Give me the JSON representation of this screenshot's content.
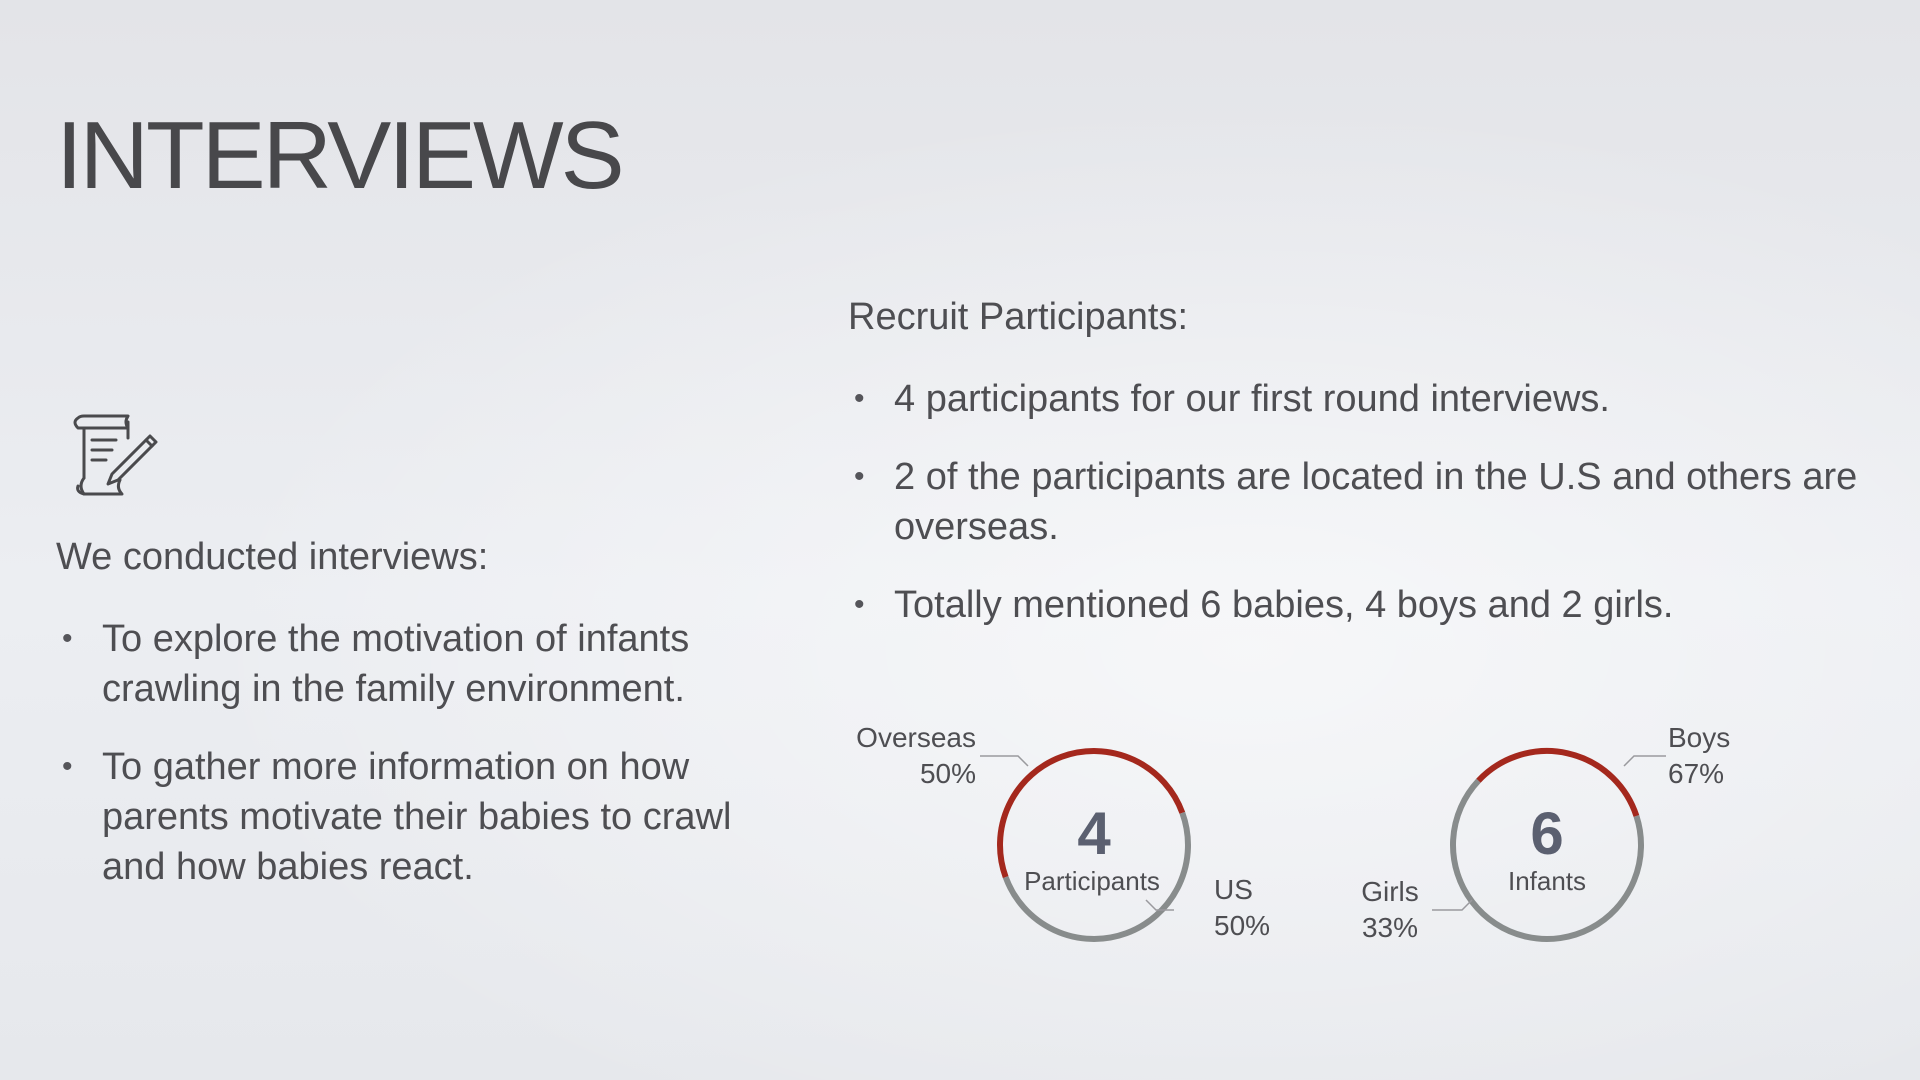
{
  "title": "INTERVIEWS",
  "left": {
    "icon": "scroll-pen-icon",
    "heading": "We conducted interviews:",
    "bullets": [
      "To explore the motivation of infants crawling in the family environment.",
      "To gather more information on how parents motivate their babies to crawl and how babies react."
    ]
  },
  "right": {
    "heading": "Recruit Participants:",
    "bullets": [
      "4 participants for our first round interviews.",
      "2 of the participants are located in the U.S and others are overseas.",
      "Totally mentioned 6 babies, 4 boys and 2 girls."
    ]
  },
  "colors": {
    "accent": "#a4281d",
    "neutral": "#888c8c",
    "number": "#5b6070"
  },
  "chart_data": [
    {
      "type": "pie",
      "center_value": "4",
      "center_label": "Participants",
      "segments": [
        {
          "name": "Overseas",
          "value": 50,
          "label": "50%",
          "color": "#a4281d"
        },
        {
          "name": "US",
          "value": 50,
          "label": "50%",
          "color": "#888c8c"
        }
      ]
    },
    {
      "type": "pie",
      "center_value": "6",
      "center_label": "Infants",
      "segments": [
        {
          "name": "Boys",
          "value": 67,
          "label": "67%",
          "color": "#888c8c"
        },
        {
          "name": "Girls",
          "value": 33,
          "label": "33%",
          "color": "#a4281d"
        }
      ]
    }
  ]
}
